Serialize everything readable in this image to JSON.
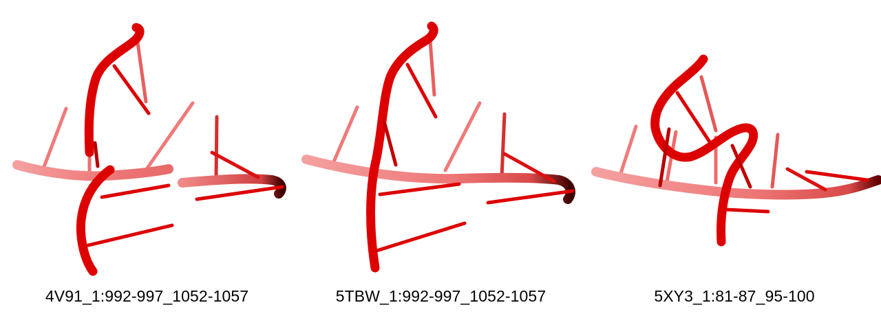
{
  "colors": {
    "strand": "#dd0000",
    "strand_light": "#ef5a5a",
    "strand_faded": "#f08888",
    "background": "#ffffff"
  },
  "panels": [
    {
      "caption": "4V91_1:992-997_1052-1057"
    },
    {
      "caption": "5TBW_1:992-997_1052-1057"
    },
    {
      "caption": "5XY3_1:81-87_95-100"
    }
  ]
}
